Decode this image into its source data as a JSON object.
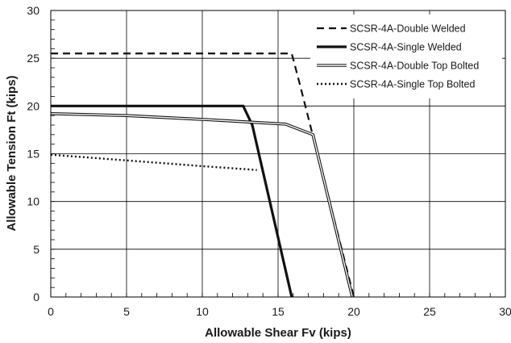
{
  "chart_data": {
    "type": "line",
    "xlabel": "Allowable Shear Fv (kips)",
    "ylabel": "Allowable Tension Ft (kips)",
    "xlim": [
      0,
      30
    ],
    "ylim": [
      0,
      30
    ],
    "x_ticks": [
      "0",
      "5",
      "10",
      "15",
      "20",
      "25",
      "30"
    ],
    "y_ticks": [
      "0",
      "5",
      "10",
      "15",
      "20",
      "25",
      "30"
    ],
    "grid": true,
    "legend_position": "top-right",
    "series": [
      {
        "name": "SCSR-4A-Double Welded",
        "style": "dashed",
        "color": "#111111",
        "points": [
          [
            0,
            25.5
          ],
          [
            15.9,
            25.5
          ],
          [
            16.4,
            22.5
          ],
          [
            20.0,
            0
          ]
        ]
      },
      {
        "name": "SCSR-4A-Single Welded",
        "style": "thick-solid",
        "color": "#111111",
        "points": [
          [
            0,
            20.0
          ],
          [
            12.7,
            20.0
          ],
          [
            13.3,
            18.0
          ],
          [
            15.9,
            0
          ]
        ]
      },
      {
        "name": "SCSR-4A-Double Top Bolted",
        "style": "double-line",
        "color": "#111111",
        "points": [
          [
            0,
            19.2
          ],
          [
            5,
            19.0
          ],
          [
            10,
            18.6
          ],
          [
            15.5,
            18.1
          ],
          [
            17.3,
            17.0
          ],
          [
            19.9,
            0
          ]
        ]
      },
      {
        "name": "SCSR-4A-Single Top Bolted",
        "style": "dotted",
        "color": "#111111",
        "points": [
          [
            0,
            14.9
          ],
          [
            5,
            14.3
          ],
          [
            10,
            13.7
          ],
          [
            13.6,
            13.3
          ]
        ]
      }
    ]
  }
}
